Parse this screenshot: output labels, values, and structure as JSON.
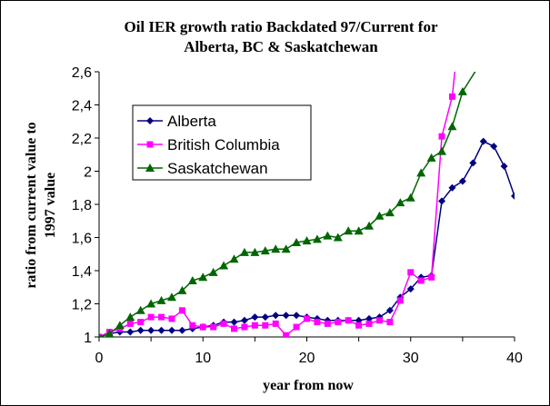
{
  "chart_data": {
    "type": "line",
    "title": [
      "Oil IER growth ratio Backdated 97/Current for",
      "Alberta, BC & Saskatchewan"
    ],
    "xlabel": "year from now",
    "ylabel": [
      "ratio  from current value to",
      "1997 value"
    ],
    "xlim": [
      0,
      40
    ],
    "ylim": [
      1,
      2.6
    ],
    "x_ticks": [
      0,
      10,
      20,
      30,
      40
    ],
    "y_ticks": [
      1,
      1.2,
      1.4,
      1.6,
      1.8,
      2,
      2.2,
      2.4,
      2.6
    ],
    "y_tick_labels": [
      "1",
      "1,2",
      "1,4",
      "1,6",
      "1,8",
      "2",
      "2,2",
      "2,4",
      "2,6"
    ],
    "grid": false,
    "legend_position": "upper-left",
    "series": [
      {
        "name": "Alberta",
        "color": "#000080",
        "marker": "diamond",
        "x": [
          0,
          1,
          2,
          3,
          4,
          5,
          6,
          7,
          8,
          9,
          10,
          11,
          12,
          13,
          14,
          15,
          16,
          17,
          18,
          19,
          20,
          21,
          22,
          23,
          24,
          25,
          26,
          27,
          28,
          29,
          30,
          31,
          32,
          33,
          34,
          35,
          36,
          37,
          38,
          39,
          40
        ],
        "y": [
          1.0,
          1.02,
          1.03,
          1.03,
          1.04,
          1.04,
          1.04,
          1.04,
          1.04,
          1.05,
          1.06,
          1.07,
          1.09,
          1.09,
          1.1,
          1.12,
          1.12,
          1.13,
          1.13,
          1.13,
          1.12,
          1.11,
          1.1,
          1.1,
          1.1,
          1.1,
          1.11,
          1.12,
          1.16,
          1.24,
          1.29,
          1.36,
          1.37,
          1.82,
          1.9,
          1.94,
          2.05,
          2.18,
          2.15,
          2.03,
          1.85
        ]
      },
      {
        "name": "British Columbia",
        "color": "#FF00FF",
        "marker": "square",
        "x": [
          0,
          1,
          2,
          3,
          4,
          5,
          6,
          7,
          8,
          9,
          10,
          11,
          12,
          13,
          14,
          15,
          16,
          17,
          18,
          19,
          20,
          21,
          22,
          23,
          24,
          25,
          26,
          27,
          28,
          29,
          30,
          31,
          32,
          33,
          34
        ],
        "y": [
          1.0,
          1.03,
          1.05,
          1.08,
          1.09,
          1.12,
          1.12,
          1.11,
          1.16,
          1.07,
          1.06,
          1.06,
          1.08,
          1.05,
          1.06,
          1.07,
          1.07,
          1.08,
          1.01,
          1.06,
          1.11,
          1.09,
          1.08,
          1.09,
          1.1,
          1.07,
          1.08,
          1.1,
          1.09,
          1.22,
          1.39,
          1.34,
          1.36,
          2.21,
          2.45
        ]
      },
      {
        "name": "Saskatchewan",
        "color": "#006600",
        "marker": "triangle",
        "x": [
          0,
          1,
          2,
          3,
          4,
          5,
          6,
          7,
          8,
          9,
          10,
          11,
          12,
          13,
          14,
          15,
          16,
          17,
          18,
          19,
          20,
          21,
          22,
          23,
          24,
          25,
          26,
          27,
          28,
          29,
          30,
          31,
          32,
          33,
          34,
          35
        ],
        "y": [
          1.0,
          1.02,
          1.07,
          1.12,
          1.16,
          1.2,
          1.22,
          1.24,
          1.28,
          1.34,
          1.36,
          1.39,
          1.43,
          1.47,
          1.51,
          1.51,
          1.52,
          1.53,
          1.53,
          1.57,
          1.58,
          1.59,
          1.61,
          1.6,
          1.64,
          1.64,
          1.67,
          1.73,
          1.75,
          1.81,
          1.84,
          1.99,
          2.08,
          2.12,
          2.27,
          2.48
        ]
      }
    ]
  }
}
